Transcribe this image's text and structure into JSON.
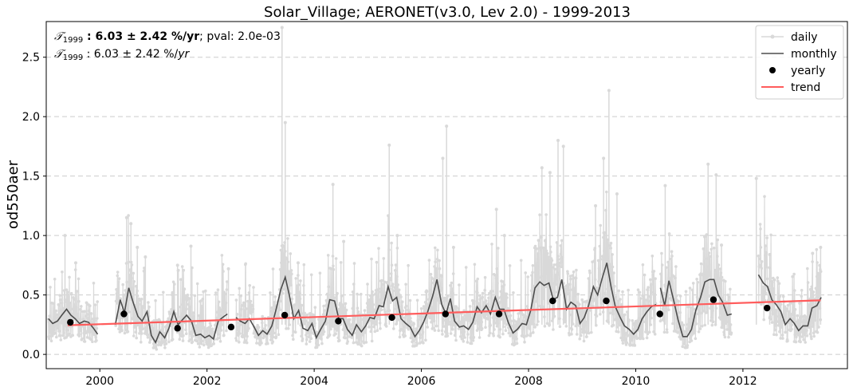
{
  "chart_data": {
    "type": "line",
    "title": "Solar_Village; AERONET(v3.0, Lev 2.0) - 1999-2013",
    "ylabel": "od550aer",
    "xlabel": "",
    "xlim": [
      1999.0,
      2013.95
    ],
    "ylim": [
      -0.12,
      2.8
    ],
    "x_ticks": [
      2000,
      2002,
      2004,
      2006,
      2008,
      2010,
      2012
    ],
    "y_ticks": [
      0.0,
      0.5,
      1.0,
      1.5,
      2.0,
      2.5
    ],
    "x_tick_labels": [
      "2000",
      "2002",
      "2004",
      "2006",
      "2008",
      "2010",
      "2012"
    ],
    "y_tick_labels": [
      "0.0",
      "0.5",
      "1.0",
      "1.5",
      "2.0",
      "2.5"
    ],
    "grid": "horizontal dashed",
    "legend_position": "top-right",
    "legend": [
      "daily",
      "monthly",
      "yearly",
      "trend"
    ],
    "annotations": {
      "line1_symbol": "𝒯",
      "line1_sub": "1999",
      "line1_bold": " : 6.03 ± 2.42 %/yr",
      "line1_rest": "; pval: 2.0e-03",
      "line2_symbol": "𝒯",
      "line2_sub": "1999",
      "line2_text": " : 6.03 ± 2.42 %/",
      "line2_italic": "yr"
    },
    "series": [
      {
        "name": "monthly",
        "segments": [
          {
            "x": [
              1999.04,
              1999.12,
              1999.21,
              1999.29,
              1999.38,
              1999.46,
              1999.54,
              1999.62,
              1999.71,
              1999.79,
              1999.88,
              1999.96
            ],
            "y": [
              0.3,
              0.26,
              0.28,
              0.33,
              0.38,
              0.33,
              0.3,
              0.26,
              0.28,
              0.27,
              0.22,
              0.17
            ]
          },
          {
            "x": [
              2000.29,
              2000.38,
              2000.46,
              2000.54,
              2000.62,
              2000.71,
              2000.79,
              2000.88,
              2000.96,
              2001.04,
              2001.12,
              2001.21,
              2001.29,
              2001.38,
              2001.46,
              2001.54,
              2001.62,
              2001.71,
              2001.79,
              2001.88,
              2001.96,
              2002.04,
              2002.12,
              2002.21,
              2002.29,
              2002.38
            ],
            "y": [
              0.25,
              0.46,
              0.35,
              0.56,
              0.44,
              0.32,
              0.28,
              0.36,
              0.16,
              0.1,
              0.19,
              0.14,
              0.22,
              0.36,
              0.25,
              0.29,
              0.33,
              0.28,
              0.16,
              0.17,
              0.14,
              0.16,
              0.13,
              0.28,
              0.31,
              0.34
            ]
          },
          {
            "x": [
              2002.54,
              2002.62,
              2002.71,
              2002.79,
              2002.88,
              2002.96,
              2003.04,
              2003.12,
              2003.21,
              2003.29,
              2003.38,
              2003.46,
              2003.54,
              2003.62,
              2003.71,
              2003.79,
              2003.88,
              2003.96,
              2004.04,
              2004.12,
              2004.21,
              2004.29,
              2004.38,
              2004.46,
              2004.54,
              2004.62,
              2004.71,
              2004.79,
              2004.88,
              2004.96,
              2005.04,
              2005.12,
              2005.21,
              2005.29,
              2005.38,
              2005.46,
              2005.54,
              2005.62,
              2005.71,
              2005.79,
              2005.88,
              2005.96,
              2006.04,
              2006.12,
              2006.21,
              2006.29,
              2006.38,
              2006.46,
              2006.54,
              2006.62,
              2006.71,
              2006.79,
              2006.88,
              2006.96,
              2007.04,
              2007.12,
              2007.21,
              2007.29,
              2007.38,
              2007.46,
              2007.54,
              2007.62,
              2007.71,
              2007.79,
              2007.88,
              2007.96,
              2008.04,
              2008.12,
              2008.21,
              2008.29,
              2008.38,
              2008.46,
              2008.54,
              2008.62,
              2008.71,
              2008.79,
              2008.88,
              2008.96,
              2009.04,
              2009.12,
              2009.21,
              2009.29,
              2009.38,
              2009.46,
              2009.54,
              2009.62,
              2009.71,
              2009.79,
              2009.88,
              2009.96,
              2010.04,
              2010.12,
              2010.21,
              2010.29,
              2010.38
            ],
            "y": [
              0.31,
              0.28,
              0.26,
              0.3,
              0.23,
              0.16,
              0.2,
              0.17,
              0.24,
              0.38,
              0.55,
              0.65,
              0.49,
              0.3,
              0.37,
              0.22,
              0.2,
              0.26,
              0.14,
              0.21,
              0.28,
              0.46,
              0.45,
              0.3,
              0.3,
              0.21,
              0.16,
              0.25,
              0.19,
              0.24,
              0.31,
              0.3,
              0.41,
              0.4,
              0.57,
              0.45,
              0.48,
              0.3,
              0.26,
              0.23,
              0.15,
              0.2,
              0.27,
              0.36,
              0.49,
              0.63,
              0.42,
              0.34,
              0.47,
              0.28,
              0.23,
              0.24,
              0.21,
              0.27,
              0.4,
              0.35,
              0.41,
              0.34,
              0.48,
              0.38,
              0.38,
              0.27,
              0.18,
              0.21,
              0.26,
              0.25,
              0.37,
              0.56,
              0.61,
              0.58,
              0.6,
              0.46,
              0.48,
              0.63,
              0.38,
              0.44,
              0.41,
              0.26,
              0.31,
              0.41,
              0.57,
              0.5,
              0.65,
              0.77,
              0.57,
              0.4,
              0.31,
              0.24,
              0.21,
              0.17,
              0.21,
              0.3,
              0.36,
              0.4,
              0.42
            ]
          },
          {
            "x": [
              2010.46,
              2010.54,
              2010.62,
              2010.71,
              2010.79,
              2010.88,
              2010.96,
              2011.04,
              2011.12,
              2011.21,
              2011.29,
              2011.38,
              2011.46,
              2011.54,
              2011.62,
              2011.71,
              2011.79
            ],
            "y": [
              0.56,
              0.41,
              0.62,
              0.45,
              0.29,
              0.15,
              0.15,
              0.21,
              0.37,
              0.48,
              0.61,
              0.63,
              0.63,
              0.5,
              0.44,
              0.33,
              0.34
            ]
          },
          {
            "x": [
              2012.29,
              2012.38,
              2012.46,
              2012.54,
              2012.62,
              2012.71,
              2012.79,
              2012.88,
              2012.96,
              2013.04,
              2013.12,
              2013.21,
              2013.29,
              2013.38,
              2013.46
            ],
            "y": [
              0.67,
              0.6,
              0.57,
              0.46,
              0.42,
              0.36,
              0.25,
              0.3,
              0.26,
              0.2,
              0.24,
              0.24,
              0.39,
              0.41,
              0.48
            ]
          }
        ]
      },
      {
        "name": "yearly",
        "x": [
          1999.45,
          2000.45,
          2001.45,
          2002.45,
          2003.45,
          2004.45,
          2005.45,
          2006.45,
          2007.45,
          2008.45,
          2009.45,
          2010.45,
          2011.45,
          2012.45
        ],
        "y": [
          0.27,
          0.34,
          0.22,
          0.23,
          0.33,
          0.28,
          0.31,
          0.34,
          0.34,
          0.45,
          0.45,
          0.34,
          0.46,
          0.39
        ]
      },
      {
        "name": "trend",
        "x": [
          1999.4,
          2013.45
        ],
        "y": [
          0.245,
          0.455
        ]
      }
    ],
    "daily_spikes": [
      [
        1999.35,
        1.0
      ],
      [
        1999.55,
        0.77
      ],
      [
        2000.5,
        1.15
      ],
      [
        2000.58,
        1.1
      ],
      [
        2000.7,
        0.9
      ],
      [
        2000.85,
        0.82
      ],
      [
        2001.45,
        0.75
      ],
      [
        2001.7,
        0.91
      ],
      [
        2002.4,
        0.72
      ],
      [
        2003.4,
        2.75
      ],
      [
        2003.46,
        1.95
      ],
      [
        2003.7,
        0.77
      ],
      [
        2004.35,
        1.43
      ],
      [
        2004.55,
        0.95
      ],
      [
        2005.4,
        1.76
      ],
      [
        2005.55,
        1.0
      ],
      [
        2006.4,
        1.65
      ],
      [
        2006.47,
        1.92
      ],
      [
        2006.6,
        0.9
      ],
      [
        2007.4,
        1.22
      ],
      [
        2007.55,
        1.0
      ],
      [
        2008.25,
        1.57
      ],
      [
        2008.4,
        1.53
      ],
      [
        2008.55,
        1.8
      ],
      [
        2008.65,
        1.75
      ],
      [
        2009.25,
        1.25
      ],
      [
        2009.4,
        1.65
      ],
      [
        2009.5,
        2.22
      ],
      [
        2009.65,
        1.35
      ],
      [
        2010.55,
        1.42
      ],
      [
        2011.35,
        1.6
      ],
      [
        2011.5,
        1.51
      ],
      [
        2011.6,
        0.92
      ],
      [
        2012.25,
        1.48
      ],
      [
        2012.5,
        0.84
      ],
      [
        2013.3,
        0.85
      ],
      [
        2013.45,
        0.9
      ]
    ],
    "colors": {
      "daily": "#d9d9d9",
      "monthly": "#4d4d4d",
      "yearly": "#000000",
      "trend": "#ff5c5c",
      "grid": "#cccccc"
    }
  }
}
